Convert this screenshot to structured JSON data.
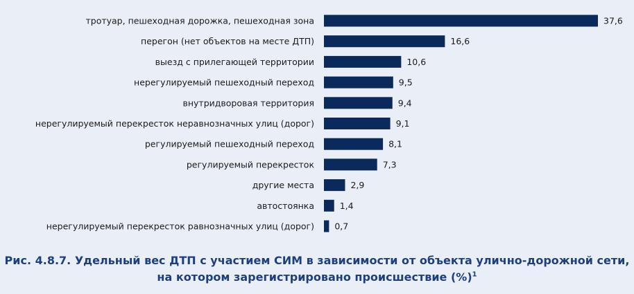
{
  "caption": {
    "line1": "Рис. 4.8.7. Удельный вес ДТП с участием СИМ в зависимости от объекта улично-дорожной сети,",
    "line2": "на котором зарегистрировано происшествие (%)",
    "footnote_mark": "1"
  },
  "colors": {
    "background": "#eaeff7",
    "bar": "#0b2a5c",
    "caption": "#1d3f7d"
  },
  "chart_data": {
    "type": "bar",
    "orientation": "horizontal",
    "categories": [
      "тротуар, пешеходная дорожка, пешеходная зона",
      "перегон (нет объектов на месте ДТП)",
      "выезд с прилегающей территории",
      "нерегулируемый пешеходный переход",
      "внутридворовая территория",
      "нерегулируемый перекресток неравнозначных улиц (дорог)",
      "регулируемый пешеходный переход",
      "регулируемый перекресток",
      "другие места",
      "автостоянка",
      "нерегулируемый перекресток равнозначных улиц (дорог)"
    ],
    "values": [
      37.6,
      16.6,
      10.6,
      9.5,
      9.4,
      9.1,
      8.1,
      7.3,
      2.9,
      1.4,
      0.7
    ],
    "value_labels": [
      "37,6",
      "16,6",
      "10,6",
      "9,5",
      "9,4",
      "9,1",
      "8,1",
      "7,3",
      "2,9",
      "1,4",
      "0,7"
    ],
    "xlim": [
      0,
      37.6
    ],
    "grid": false,
    "legend": "none"
  }
}
